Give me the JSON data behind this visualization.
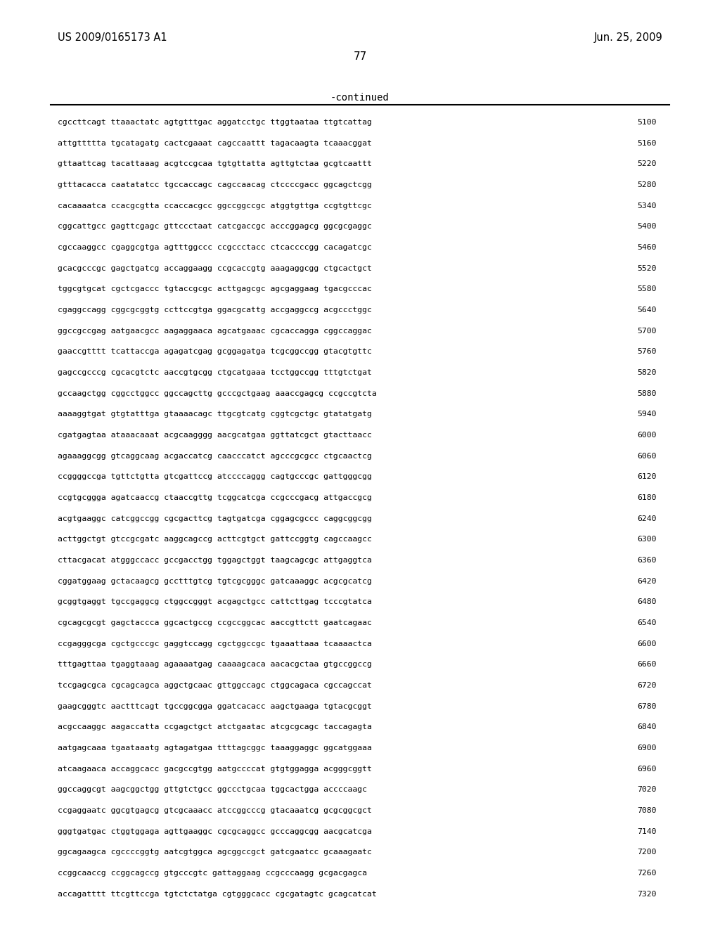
{
  "header_left": "US 2009/0165173 A1",
  "header_right": "Jun. 25, 2009",
  "page_number": "77",
  "continued_label": "-continued",
  "background_color": "#ffffff",
  "text_color": "#000000",
  "lines": [
    [
      "cgccttcagt ttaaactatc agtgtttgac aggatcctgc ttggtaataa ttgtcattag",
      "5100"
    ],
    [
      "attgttttta tgcatagatg cactcgaaat cagccaattt tagacaagta tcaaacggat",
      "5160"
    ],
    [
      "gttaattcag tacattaaag acgtccgcaa tgtgttatta agttgtctaa gcgtcaattt",
      "5220"
    ],
    [
      "gtttacacca caatatatcc tgccaccagc cagccaacag ctccccgacc ggcagctcgg",
      "5280"
    ],
    [
      "cacaaaatca ccacgcgtta ccaccacgcc ggccggccgc atggtgttga ccgtgttcgc",
      "5340"
    ],
    [
      "cggcattgcc gagttcgagc gttccctaat catcgaccgc acccggagcg ggcgcgaggc",
      "5400"
    ],
    [
      "cgccaaggcc cgaggcgtga agtttggccc ccgccctacc ctcaccccgg cacagatcgc",
      "5460"
    ],
    [
      "gcacgcccgc gagctgatcg accaggaagg ccgcaccgtg aaagaggcgg ctgcactgct",
      "5520"
    ],
    [
      "tggcgtgcat cgctcgaccc tgtaccgcgc acttgagcgc agcgaggaag tgacgcccac",
      "5580"
    ],
    [
      "cgaggccagg cggcgcggtg ccttccgtga ggacgcattg accgaggccg acgccctggc",
      "5640"
    ],
    [
      "ggccgccgag aatgaacgcc aagaggaaca agcatgaaac cgcaccagga cggccaggac",
      "5700"
    ],
    [
      "gaaccgtttt tcattaccga agagatcgag gcggagatga tcgcggccgg gtacgtgttc",
      "5760"
    ],
    [
      "gagccgcccg cgcacgtctc aaccgtgcgg ctgcatgaaa tcctggccgg tttgtctgat",
      "5820"
    ],
    [
      "gccaagctgg cggcctggcc ggccagcttg gcccgctgaag aaaccgagcg ccgccgtcta",
      "5880"
    ],
    [
      "aaaaggtgat gtgtatttga gtaaaacagc ttgcgtcatg cggtcgctgc gtatatgatg",
      "5940"
    ],
    [
      "cgatgagtaa ataaacaaat acgcaagggg aacgcatgaa ggttatcgct gtacttaacc",
      "6000"
    ],
    [
      "agaaaggcgg gtcaggcaag acgaccatcg caacccatct agcccgcgcc ctgcaactcg",
      "6060"
    ],
    [
      "ccggggccga tgttctgtta gtcgattccg atccccaggg cagtgcccgc gattgggcgg",
      "6120"
    ],
    [
      "ccgtgcggga agatcaaccg ctaaccgttg tcggcatcga ccgcccgacg attgaccgcg",
      "6180"
    ],
    [
      "acgtgaaggc catcggccgg cgcgacttcg tagtgatcga cggagcgccc caggcggcgg",
      "6240"
    ],
    [
      "acttggctgt gtccgcgatc aaggcagccg acttcgtgct gattccggtg cagccaagcc",
      "6300"
    ],
    [
      "cttacgacat atgggccacc gccgacctgg tggagctggt taagcagcgc attgaggtca",
      "6360"
    ],
    [
      "cggatggaag gctacaagcg gcctttgtcg tgtcgcgggc gatcaaaggc acgcgcatcg",
      "6420"
    ],
    [
      "gcggtgaggt tgccgaggcg ctggccgggt acgagctgcc cattcttgag tcccgtatca",
      "6480"
    ],
    [
      "cgcagcgcgt gagctaccca ggcactgccg ccgccggcac aaccgttctt gaatcagaac",
      "6540"
    ],
    [
      "ccgagggcga cgctgcccgc gaggtccagg cgctggccgc tgaaattaaa tcaaaactca",
      "6600"
    ],
    [
      "tttgagttaa tgaggtaaag agaaaatgag caaaagcaca aacacgctaa gtgccggccg",
      "6660"
    ],
    [
      "tccgagcgca cgcagcagca aggctgcaac gttggccagc ctggcagaca cgccagccat",
      "6720"
    ],
    [
      "gaagcgggtc aactttcagt tgccggcgga ggatcacacc aagctgaaga tgtacgcggt",
      "6780"
    ],
    [
      "acgccaaggc aagaccatta ccgagctgct atctgaatac atcgcgcagc taccagagta",
      "6840"
    ],
    [
      "aatgagcaaa tgaataaatg agtagatgaa ttttagcggc taaaggaggc ggcatggaaa",
      "6900"
    ],
    [
      "atcaagaaca accaggcacc gacgccgtgg aatgccccat gtgtggagga acgggcggtt",
      "6960"
    ],
    [
      "ggccaggcgt aagcggctgg gttgtctgcc ggccctgcaa tggcactgga accccaagc",
      "7020"
    ],
    [
      "ccgaggaatc ggcgtgagcg gtcgcaaacc atccggcccg gtacaaatcg gcgcggcgct",
      "7080"
    ],
    [
      "gggtgatgac ctggtggaga agttgaaggc cgcgcaggcc gcccaggcgg aacgcatcga",
      "7140"
    ],
    [
      "ggcagaagca cgccccggtg aatcgtggca agcggccgct gatcgaatcc gcaaagaatc",
      "7200"
    ],
    [
      "ccggcaaccg ccggcagccg gtgcccgtc gattaggaag ccgcccaagg gcgacgagca",
      "7260"
    ],
    [
      "accagatttt ttcgttccga tgtctctatga cgtgggcacc cgcgatagtc gcagcatcat",
      "7320"
    ]
  ]
}
